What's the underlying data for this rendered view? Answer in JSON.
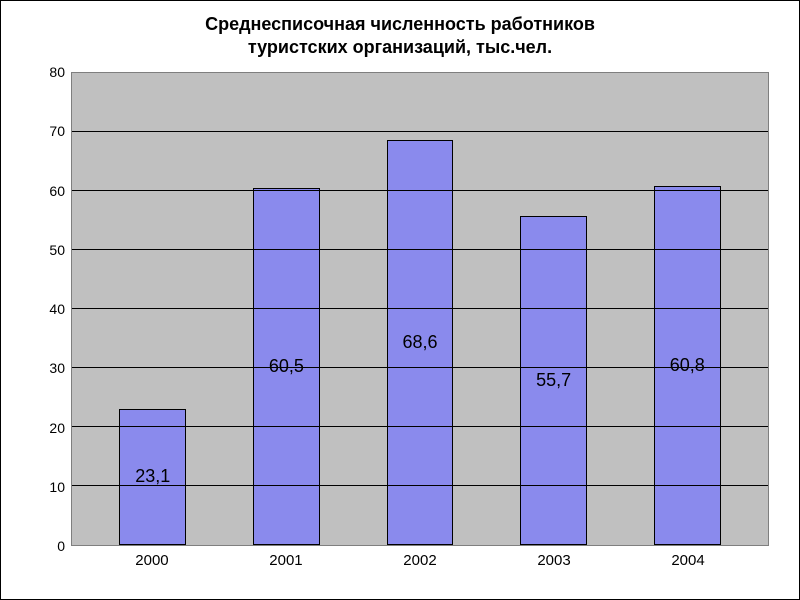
{
  "chart": {
    "type": "bar",
    "title": "Среднесписочная численность работников\nтуристских организаций, тыс.чел.",
    "title_fontsize": 18,
    "title_fontweight": "bold",
    "categories": [
      "2000",
      "2001",
      "2002",
      "2003",
      "2004"
    ],
    "values": [
      23.1,
      60.5,
      68.6,
      55.7,
      60.8
    ],
    "value_labels": [
      "23,1",
      "60,5",
      "68,6",
      "55,7",
      "60,8"
    ],
    "bar_color": "#8a8aed",
    "bar_border_color": "#000000",
    "bar_width_pct": 50,
    "ylim": [
      0,
      80
    ],
    "ytick_step": 10,
    "yticks": [
      0,
      10,
      20,
      30,
      40,
      50,
      60,
      70,
      80
    ],
    "plot_background": "#c0c0c0",
    "outer_background": "#ffffff",
    "grid_color": "#000000",
    "axis_label_fontsize": 14,
    "bar_label_fontsize": 18,
    "x_label_fontsize": 15
  }
}
